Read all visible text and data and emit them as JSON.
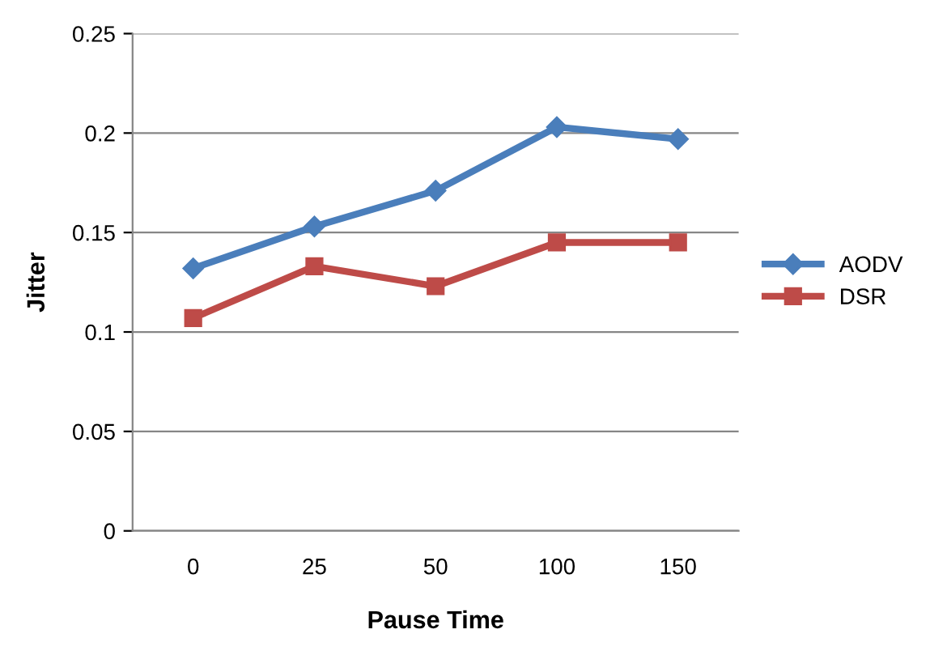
{
  "chart_data": {
    "type": "line",
    "xlabel": "Pause Time",
    "ylabel": "Jitter",
    "categories": [
      "0",
      "25",
      "50",
      "100",
      "150"
    ],
    "series": [
      {
        "name": "AODV",
        "color": "#4a7ebb",
        "marker": "diamond",
        "values": [
          0.132,
          0.153,
          0.171,
          0.203,
          0.197
        ]
      },
      {
        "name": "DSR",
        "color": "#be4b48",
        "marker": "square",
        "values": [
          0.107,
          0.133,
          0.123,
          0.145,
          0.145
        ]
      }
    ],
    "ylim": [
      0,
      0.25
    ],
    "yticks": [
      0,
      0.05,
      0.1,
      0.15,
      0.2,
      0.25
    ],
    "grid": "y",
    "legend": "right",
    "line_style": "solid"
  }
}
